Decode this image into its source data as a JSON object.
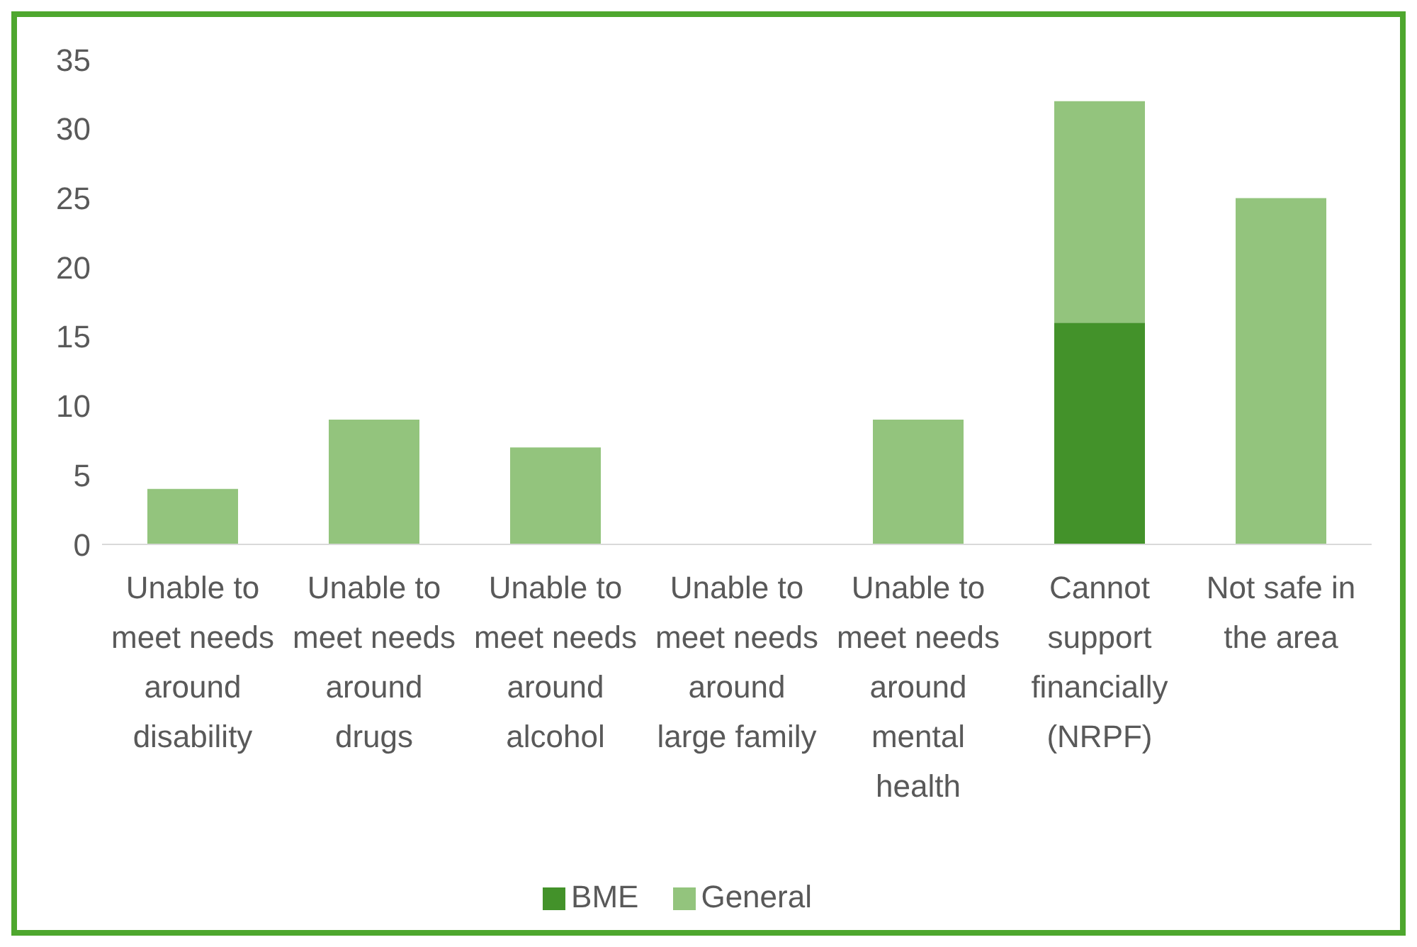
{
  "chart_data": {
    "type": "bar",
    "stacked": true,
    "categories": [
      "Unable to meet needs around disability",
      "Unable to meet needs around drugs",
      "Unable to meet needs around alcohol",
      "Unable to meet needs around large family",
      "Unable to meet needs around mental health",
      "Cannot support financially (NRPF)",
      "Not safe in the area"
    ],
    "series": [
      {
        "name": "BME",
        "color": "#43922a",
        "values": [
          0,
          0,
          0,
          0,
          0,
          16,
          0
        ]
      },
      {
        "name": "General",
        "color": "#93c47d",
        "values": [
          4,
          9,
          7,
          0,
          9,
          16,
          25
        ]
      }
    ],
    "ylim": [
      0,
      35
    ],
    "yticks": [
      0,
      5,
      10,
      15,
      20,
      25,
      30,
      35
    ],
    "grid": false,
    "legend": "bottom"
  }
}
